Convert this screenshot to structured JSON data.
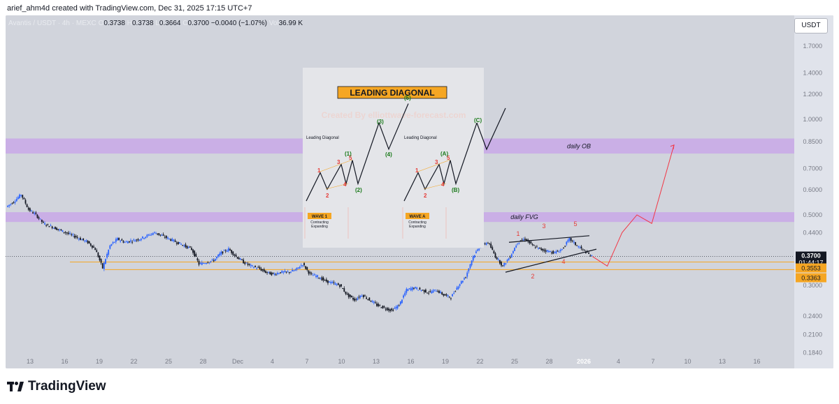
{
  "header": {
    "text": "arief_ahm4d created with TradingView.com, Dec 31, 2025 17:15 UTC+7"
  },
  "symbol": {
    "name": "Avantis / USDT · 4h · MEXC",
    "open_label": "O",
    "open": "0.3738",
    "high_label": "H",
    "high": "0.3738",
    "low_label": "L",
    "low": "0.3664",
    "close_label": "C",
    "close": "0.3700",
    "change": "−0.0040 (−1.07%)",
    "vol_label": "Vol",
    "volume": "36.99 K"
  },
  "currency_button": "USDT",
  "brand": "TradingView",
  "colors": {
    "up": "#2962ff",
    "down": "#131722",
    "zone": "#c9a8e8",
    "orange": "#f5a623",
    "wave_red": "#e53935",
    "projection": "#f23645"
  },
  "chart_data": {
    "type": "candlestick",
    "timeframe": "4h",
    "y_scale": "log",
    "ylim": [
      0.18,
      1.9
    ],
    "price_ticks": [
      "1.7000",
      "1.4000",
      "1.2000",
      "1.0000",
      "0.8500",
      "0.7000",
      "0.6000",
      "0.5000",
      "0.4400",
      "0.3000",
      "0.2400",
      "0.2100",
      "0.1840"
    ],
    "price_tick_values": [
      1.7,
      1.4,
      1.2,
      1.0,
      0.85,
      0.7,
      0.6,
      0.5,
      0.44,
      0.3,
      0.24,
      0.21,
      0.184
    ],
    "date_labels": [
      "13",
      "16",
      "19",
      "22",
      "25",
      "28",
      "Dec",
      "4",
      "7",
      "10",
      "13",
      "16",
      "19",
      "22",
      "25",
      "28",
      "2026",
      "4",
      "7",
      "10",
      "13",
      "16"
    ],
    "price_path": [
      [
        0,
        0.53
      ],
      [
        1,
        0.55
      ],
      [
        2,
        0.58
      ],
      [
        3,
        0.52
      ],
      [
        4,
        0.5
      ],
      [
        5,
        0.47
      ],
      [
        6,
        0.46
      ],
      [
        7,
        0.45
      ],
      [
        8,
        0.44
      ],
      [
        9,
        0.43
      ],
      [
        10,
        0.42
      ],
      [
        11,
        0.41
      ],
      [
        12,
        0.39
      ],
      [
        13,
        0.34
      ],
      [
        14,
        0.4
      ],
      [
        15,
        0.42
      ],
      [
        16,
        0.41
      ],
      [
        17,
        0.415
      ],
      [
        18,
        0.42
      ],
      [
        19,
        0.43
      ],
      [
        20,
        0.44
      ],
      [
        21,
        0.43
      ],
      [
        22,
        0.42
      ],
      [
        23,
        0.41
      ],
      [
        24,
        0.4
      ],
      [
        25,
        0.39
      ],
      [
        26,
        0.35
      ],
      [
        27,
        0.355
      ],
      [
        28,
        0.36
      ],
      [
        29,
        0.38
      ],
      [
        30,
        0.39
      ],
      [
        31,
        0.37
      ],
      [
        32,
        0.355
      ],
      [
        33,
        0.345
      ],
      [
        34,
        0.34
      ],
      [
        35,
        0.33
      ],
      [
        36,
        0.325
      ],
      [
        37,
        0.33
      ],
      [
        38,
        0.33
      ],
      [
        39,
        0.335
      ],
      [
        40,
        0.35
      ],
      [
        41,
        0.325
      ],
      [
        42,
        0.32
      ],
      [
        43,
        0.31
      ],
      [
        44,
        0.305
      ],
      [
        45,
        0.3
      ],
      [
        46,
        0.28
      ],
      [
        47,
        0.27
      ],
      [
        48,
        0.28
      ],
      [
        49,
        0.27
      ],
      [
        50,
        0.26
      ],
      [
        51,
        0.255
      ],
      [
        52,
        0.25
      ],
      [
        53,
        0.26
      ],
      [
        54,
        0.29
      ],
      [
        55,
        0.295
      ],
      [
        56,
        0.29
      ],
      [
        57,
        0.285
      ],
      [
        58,
        0.29
      ],
      [
        59,
        0.28
      ],
      [
        60,
        0.275
      ],
      [
        61,
        0.3
      ],
      [
        62,
        0.32
      ],
      [
        63,
        0.37
      ],
      [
        64,
        0.4
      ],
      [
        65,
        0.41
      ],
      [
        66,
        0.37
      ],
      [
        67,
        0.345
      ],
      [
        68,
        0.37
      ],
      [
        69,
        0.41
      ],
      [
        70,
        0.42
      ],
      [
        71,
        0.4
      ],
      [
        72,
        0.39
      ],
      [
        73,
        0.385
      ],
      [
        74,
        0.38
      ],
      [
        75,
        0.39
      ],
      [
        76,
        0.42
      ],
      [
        77,
        0.4
      ],
      [
        78,
        0.385
      ],
      [
        79,
        0.37
      ]
    ],
    "zones": [
      {
        "label": "daily OB",
        "low": 0.78,
        "high": 0.87
      },
      {
        "label": "daily FVG",
        "low": 0.475,
        "high": 0.51
      }
    ],
    "horizontal_levels": [
      0.37,
      0.3553,
      0.3363
    ],
    "price_labels": [
      {
        "value": "0.3700",
        "sub": "01:44:17"
      },
      {
        "value": "0.3553"
      },
      {
        "value": "0.3363"
      }
    ],
    "wave_labels": [
      "1",
      "2",
      "3",
      "4",
      "5"
    ],
    "projection": [
      [
        79,
        0.37
      ],
      [
        81,
        0.345
      ],
      [
        83,
        0.44
      ],
      [
        85,
        0.5
      ],
      [
        87,
        0.47
      ],
      [
        90,
        0.83
      ]
    ]
  },
  "inset": {
    "title": "LEADING DIAGONAL",
    "watermark": "Created By elliottwave-forecast.com",
    "left": {
      "caption": "Leading Diagonal",
      "wave_labels_green": [
        "(1)",
        "(2)",
        "(3)",
        "(4)",
        "(5)"
      ],
      "wave_labels_red": [
        "1",
        "2",
        "3",
        "4",
        "5"
      ],
      "tag": "WAVE 1",
      "tag_sub1": "Contracting",
      "tag_sub2": "Expanding"
    },
    "right": {
      "caption": "Leading Diagonal",
      "wave_labels_green": [
        "(A)",
        "(B)",
        "(C)"
      ],
      "wave_labels_red": [
        "1",
        "2",
        "3",
        "4",
        "5"
      ],
      "tag": "WAVE A",
      "tag_sub1": "Contracting",
      "tag_sub2": "Expanding"
    }
  }
}
